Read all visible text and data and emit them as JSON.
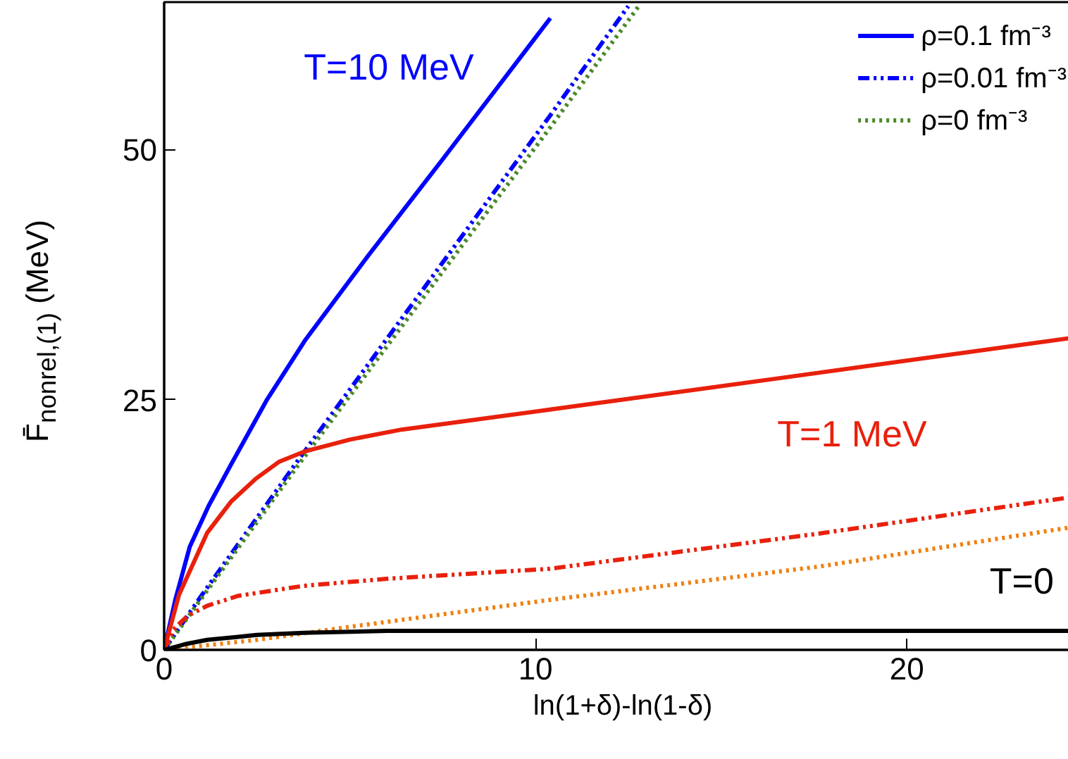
{
  "chart_data": {
    "type": "line",
    "xlabel": "ln(1+δ)-ln(1-δ)",
    "ylabel": "F̄$_{nonrel,(1)}$ (MeV)",
    "xlim": [
      0,
      24.7
    ],
    "ylim": [
      0,
      64.7
    ],
    "xticks": [
      0,
      10,
      20
    ],
    "yticks": [
      0,
      25,
      50
    ],
    "grid": false,
    "legend": "top right",
    "series": [
      {
        "name": "ρ=0.1 fm⁻³",
        "color": "#0000ff",
        "line_style": "solid",
        "x": [
          0,
          0.3,
          0.69,
          1.2,
          1.8,
          2.77,
          3.81,
          5.5,
          7.5,
          9.0,
          10.4
        ],
        "values": [
          0,
          5,
          10.3,
          14.4,
          18.5,
          25,
          31,
          39.4,
          49,
          56.3,
          63.1
        ]
      },
      {
        "name": "ρ=0.01 fm⁻³",
        "color": "#0000ff",
        "line_style": "dashdot",
        "x": [
          0,
          1,
          3.6,
          10.4,
          12.5
        ],
        "values": [
          0,
          5.4,
          18.9,
          53.4,
          64.3
        ]
      },
      {
        "name": "ρ=0 fm⁻³",
        "color": "#4a8a2a",
        "line_style": "dotted",
        "x": [
          0,
          3.6,
          10.4,
          12.8
        ],
        "values": [
          0,
          18.4,
          52.2,
          64.4
        ]
      },
      {
        "color": "#e8200c",
        "line_style": "solid",
        "x": [
          0,
          0.4,
          1.16,
          1.8,
          2.47,
          3.1,
          3.77,
          5,
          6.39,
          10.38,
          16.5,
          24.7
        ],
        "values": [
          0,
          5.5,
          11.7,
          14.8,
          17.1,
          18.8,
          19.8,
          21,
          22,
          24,
          27.1,
          31.3
        ]
      },
      {
        "color": "#e8200c",
        "line_style": "dashdot",
        "x": [
          0,
          0.24,
          0.63,
          1.16,
          2,
          3.77,
          6,
          10.38,
          17.6,
          24.7
        ],
        "values": [
          0,
          2.0,
          3.4,
          4.4,
          5.4,
          6.4,
          7.1,
          8.1,
          11.6,
          15.4
        ]
      },
      {
        "color": "#f08010",
        "line_style": "dotted",
        "x": [
          0,
          1,
          2.5,
          5,
          10.4,
          17.6,
          24.7
        ],
        "values": [
          0,
          0.4,
          1.0,
          2.3,
          5.0,
          8.3,
          12.4
        ]
      },
      {
        "color": "#000000",
        "line_style": "solid",
        "x": [
          0,
          0.6,
          1.16,
          2,
          2.5,
          3.77,
          6,
          24.7
        ],
        "values": [
          0,
          0.6,
          1.0,
          1.3,
          1.5,
          1.7,
          1.9,
          1.9
        ]
      }
    ],
    "annotations": [
      "T=10 MeV",
      "T=1 MeV",
      "T=0"
    ]
  }
}
